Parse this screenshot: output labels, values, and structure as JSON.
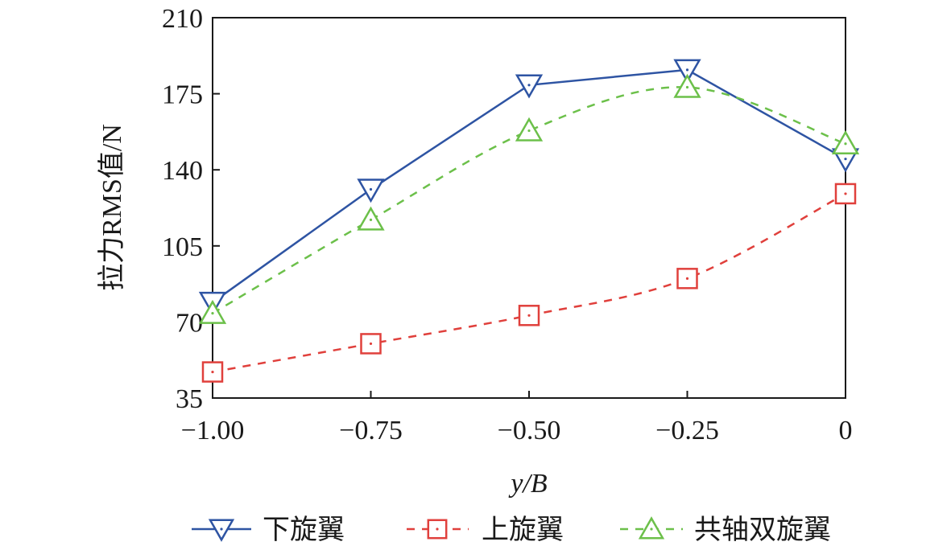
{
  "chart_data": {
    "type": "line",
    "title": "",
    "xlabel": "y/B",
    "ylabel": "拉力RMS值/N",
    "x": [
      -1.0,
      -0.75,
      -0.5,
      -0.25,
      0
    ],
    "x_tick_labels": [
      "−1.00",
      "−0.75",
      "−0.50",
      "−0.25",
      "0"
    ],
    "xlim": [
      -1.0,
      0.0
    ],
    "ylim": [
      35,
      210
    ],
    "y_ticks": [
      35,
      70,
      105,
      140,
      175,
      210
    ],
    "y_tick_labels": [
      "35",
      "70",
      "105",
      "140",
      "175",
      "210"
    ],
    "grid": false,
    "legend_position": "bottom",
    "series": [
      {
        "name": "下旋翼",
        "values": [
          79,
          131,
          179,
          186,
          145
        ],
        "color": "#2e54a3",
        "line_style": "solid",
        "marker": "triangle-down"
      },
      {
        "name": "上旋翼",
        "values": [
          47,
          60,
          73,
          90,
          129
        ],
        "color": "#e0403c",
        "line_style": "dashed",
        "marker": "square"
      },
      {
        "name": "共轴双旋翼",
        "values": [
          74,
          117,
          158,
          178,
          152
        ],
        "color": "#6cc04a",
        "line_style": "dashed",
        "marker": "triangle-up"
      }
    ]
  }
}
